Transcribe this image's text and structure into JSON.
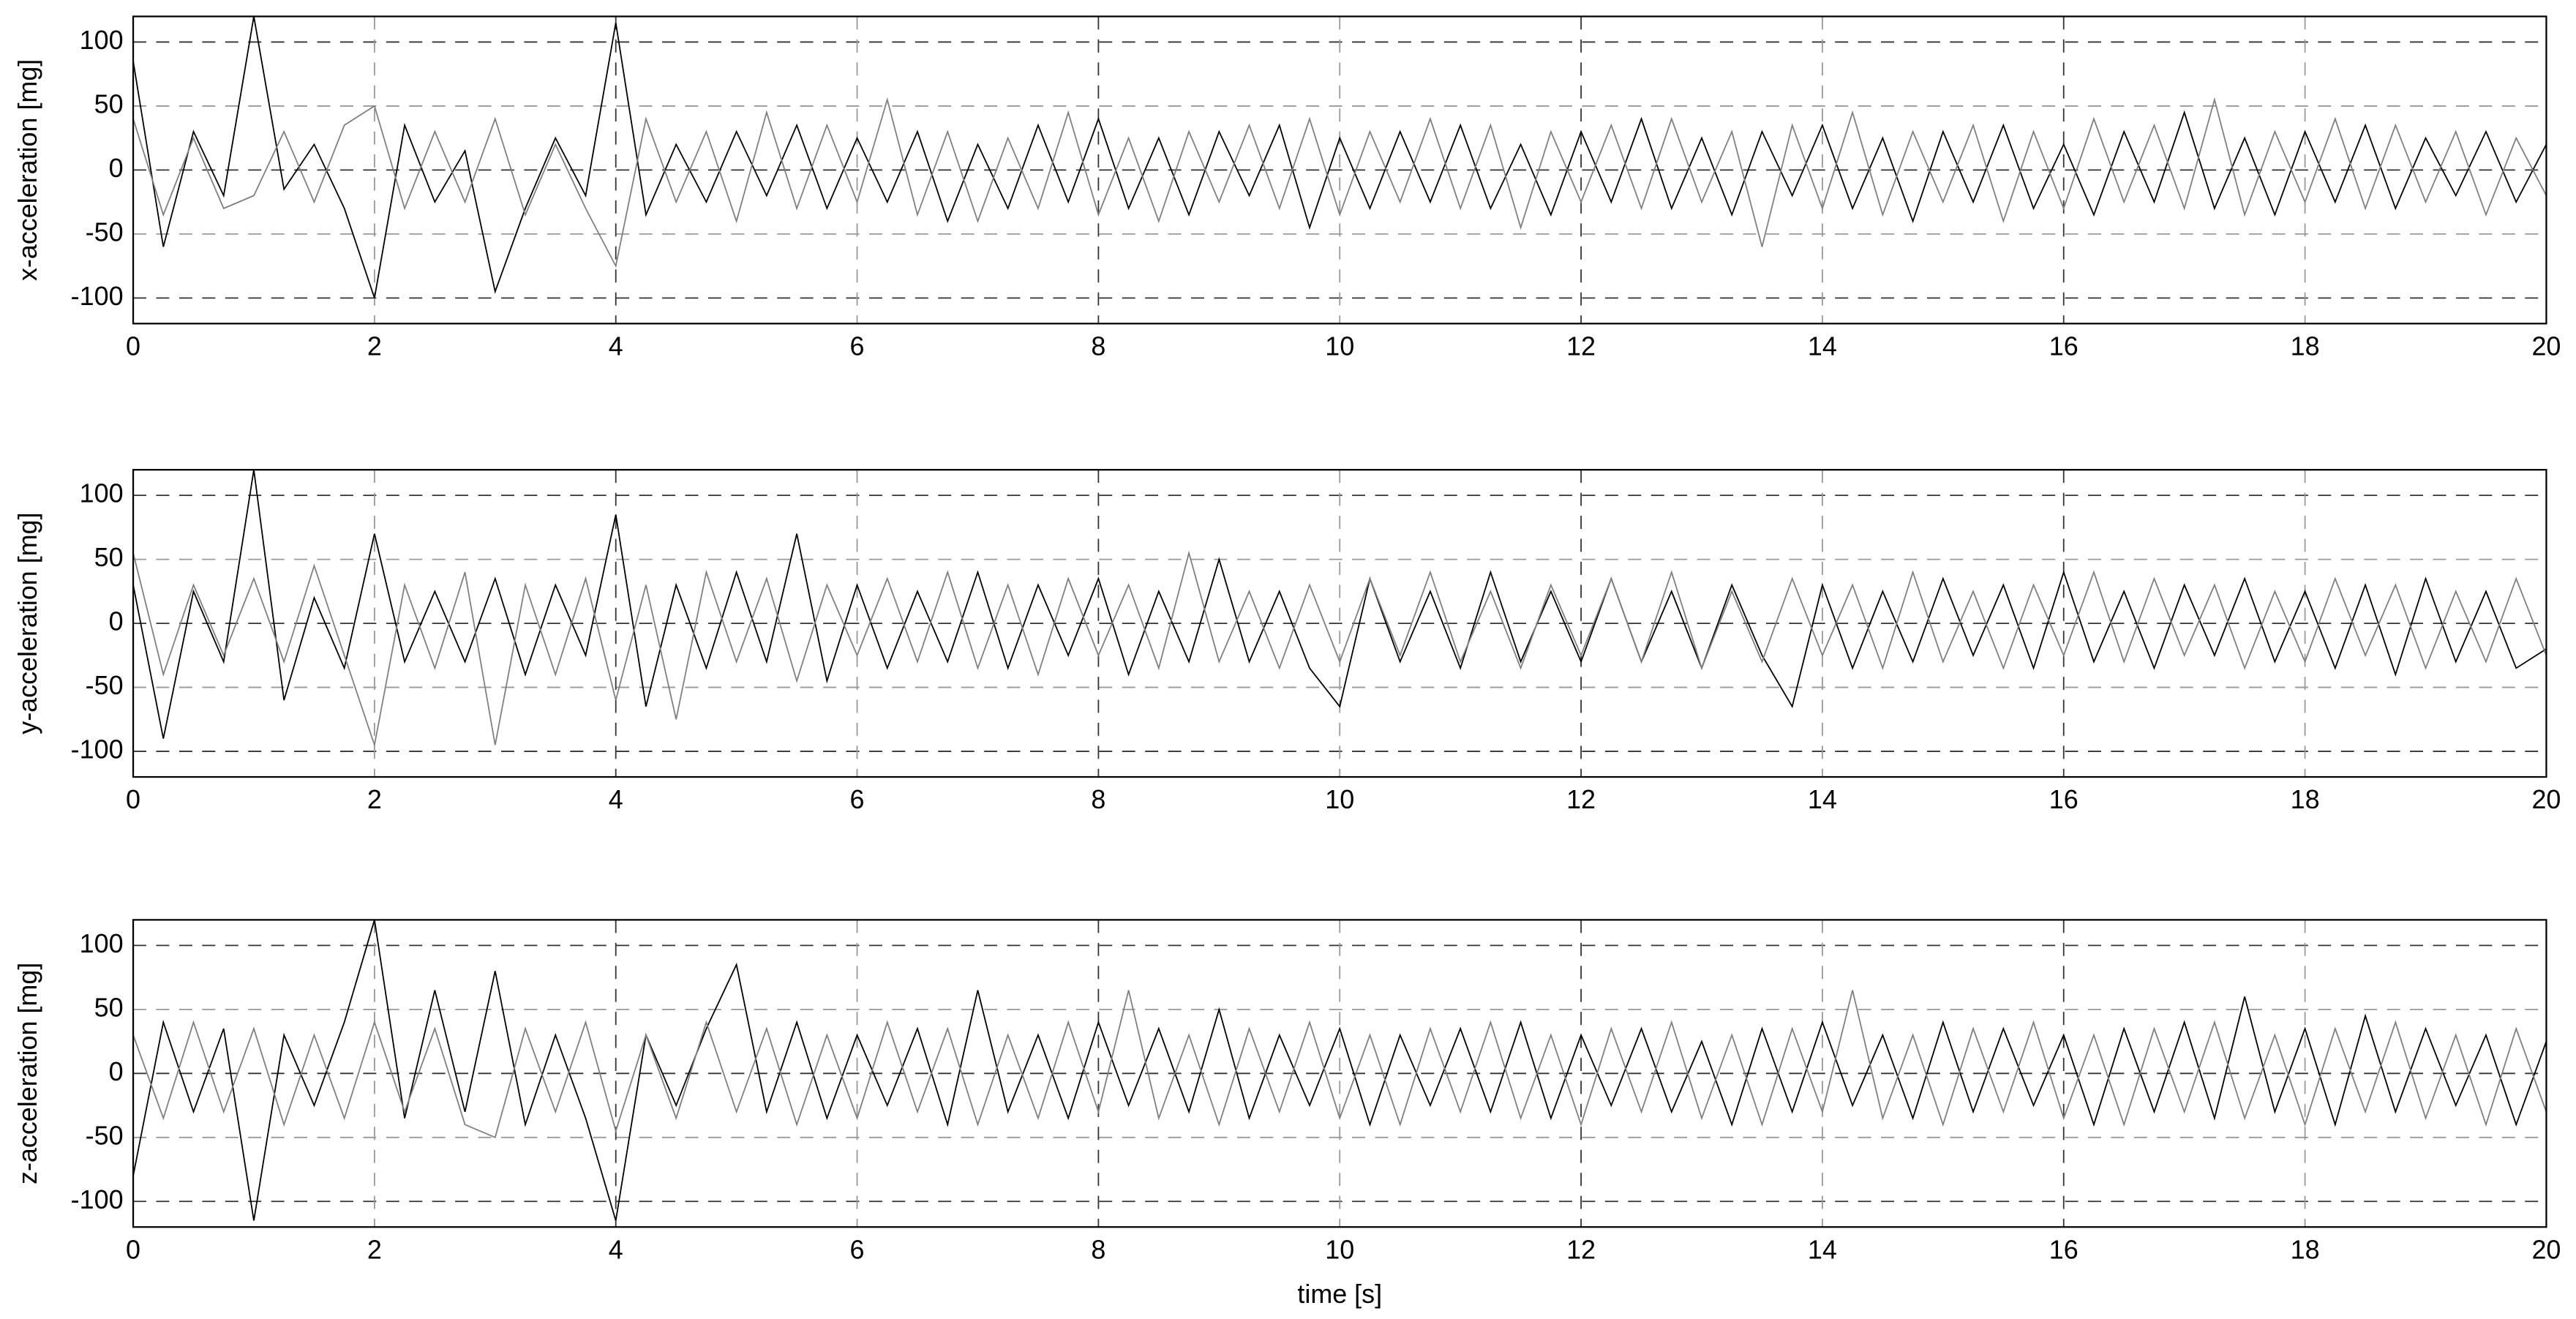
{
  "chart_data": [
    {
      "type": "line",
      "ylabel": "x-acceleration [mg]",
      "x": [
        0,
        0.25,
        0.5,
        0.75,
        1,
        1.25,
        1.5,
        1.75,
        2,
        2.25,
        2.5,
        2.75,
        3,
        3.25,
        3.5,
        3.75,
        4,
        4.25,
        4.5,
        4.75,
        5,
        5.25,
        5.5,
        5.75,
        6,
        6.25,
        6.5,
        6.75,
        7,
        7.25,
        7.5,
        7.75,
        8,
        8.25,
        8.5,
        8.75,
        9,
        9.25,
        9.5,
        9.75,
        10,
        10.25,
        10.5,
        10.75,
        11,
        11.25,
        11.5,
        11.75,
        12,
        12.25,
        12.5,
        12.75,
        13,
        13.25,
        13.5,
        13.75,
        14,
        14.25,
        14.5,
        14.75,
        15,
        15.25,
        15.5,
        15.75,
        16,
        16.25,
        16.5,
        16.75,
        17,
        17.25,
        17.5,
        17.75,
        18,
        18.25,
        18.5,
        18.75,
        19,
        19.25,
        19.5,
        19.75,
        20
      ],
      "series": [
        {
          "color": "#000000",
          "values": [
            85,
            -60,
            30,
            -20,
            120,
            -15,
            20,
            -30,
            -100,
            35,
            -25,
            15,
            -95,
            -30,
            25,
            -20,
            115,
            -35,
            20,
            -25,
            30,
            -20,
            35,
            -30,
            25,
            -25,
            30,
            -40,
            20,
            -30,
            35,
            -25,
            40,
            -30,
            25,
            -35,
            30,
            -20,
            35,
            -45,
            25,
            -30,
            30,
            -25,
            35,
            -30,
            20,
            -35,
            30,
            -25,
            40,
            -30,
            25,
            -35,
            30,
            -20,
            35,
            -30,
            25,
            -40,
            30,
            -25,
            35,
            -30,
            20,
            -35,
            30,
            -25,
            45,
            -30,
            25,
            -35,
            30,
            -25,
            35,
            -30,
            25,
            -20,
            30,
            -25,
            20
          ]
        },
        {
          "color": "#808080",
          "values": [
            40,
            -35,
            25,
            -30,
            -20,
            30,
            -25,
            35,
            50,
            -30,
            30,
            -25,
            40,
            -35,
            20,
            -30,
            -75,
            40,
            -25,
            30,
            -40,
            45,
            -30,
            35,
            -25,
            55,
            -35,
            30,
            -40,
            25,
            -30,
            45,
            -35,
            25,
            -40,
            30,
            -25,
            35,
            -30,
            40,
            -35,
            30,
            -25,
            40,
            -30,
            35,
            -45,
            30,
            -25,
            35,
            -30,
            40,
            -25,
            30,
            -60,
            35,
            -30,
            45,
            -35,
            30,
            -25,
            35,
            -40,
            30,
            -30,
            40,
            -25,
            35,
            -30,
            55,
            -35,
            30,
            -25,
            40,
            -30,
            35,
            -25,
            30,
            -35,
            25,
            -20
          ]
        }
      ],
      "xlim": [
        0,
        20
      ],
      "xticks": [
        0,
        2,
        4,
        6,
        8,
        10,
        12,
        14,
        16,
        18,
        20
      ],
      "ylim": [
        -120,
        120
      ],
      "yticks": [
        -100,
        -50,
        0,
        50,
        100
      ],
      "grid": true
    },
    {
      "type": "line",
      "ylabel": "y-acceleration [mg]",
      "x": [
        0,
        0.25,
        0.5,
        0.75,
        1,
        1.25,
        1.5,
        1.75,
        2,
        2.25,
        2.5,
        2.75,
        3,
        3.25,
        3.5,
        3.75,
        4,
        4.25,
        4.5,
        4.75,
        5,
        5.25,
        5.5,
        5.75,
        6,
        6.25,
        6.5,
        6.75,
        7,
        7.25,
        7.5,
        7.75,
        8,
        8.25,
        8.5,
        8.75,
        9,
        9.25,
        9.5,
        9.75,
        10,
        10.25,
        10.5,
        10.75,
        11,
        11.25,
        11.5,
        11.75,
        12,
        12.25,
        12.5,
        12.75,
        13,
        13.25,
        13.5,
        13.75,
        14,
        14.25,
        14.5,
        14.75,
        15,
        15.25,
        15.5,
        15.75,
        16,
        16.25,
        16.5,
        16.75,
        17,
        17.25,
        17.5,
        17.75,
        18,
        18.25,
        18.5,
        18.75,
        19,
        19.25,
        19.5,
        19.75,
        20
      ],
      "series": [
        {
          "color": "#000000",
          "values": [
            30,
            -90,
            25,
            -30,
            120,
            -60,
            20,
            -35,
            70,
            -30,
            25,
            -30,
            35,
            -40,
            30,
            -25,
            85,
            -65,
            30,
            -35,
            40,
            -30,
            70,
            -45,
            30,
            -35,
            25,
            -30,
            40,
            -35,
            30,
            -25,
            35,
            -40,
            25,
            -30,
            50,
            -30,
            25,
            -35,
            -65,
            35,
            -30,
            25,
            -35,
            40,
            -30,
            25,
            -30,
            35,
            -30,
            25,
            -35,
            30,
            -25,
            -65,
            30,
            -35,
            25,
            -30,
            35,
            -25,
            30,
            -35,
            40,
            -30,
            25,
            -35,
            30,
            -25,
            35,
            -30,
            25,
            -35,
            30,
            -40,
            35,
            -30,
            25,
            -35,
            -20
          ]
        },
        {
          "color": "#808080",
          "values": [
            55,
            -40,
            30,
            -25,
            35,
            -30,
            45,
            -25,
            -95,
            30,
            -35,
            40,
            -95,
            30,
            -40,
            35,
            -60,
            30,
            -75,
            40,
            -30,
            35,
            -45,
            30,
            -25,
            35,
            -30,
            40,
            -35,
            30,
            -40,
            35,
            -25,
            30,
            -35,
            55,
            -30,
            25,
            -35,
            30,
            -30,
            35,
            -25,
            40,
            -30,
            25,
            -35,
            30,
            -25,
            35,
            -30,
            40,
            -35,
            25,
            -30,
            35,
            -25,
            30,
            -35,
            40,
            -30,
            25,
            -35,
            30,
            -25,
            40,
            -30,
            35,
            -25,
            30,
            -35,
            25,
            -30,
            35,
            -25,
            30,
            -35,
            25,
            -30,
            35,
            -25
          ]
        }
      ],
      "xlim": [
        0,
        20
      ],
      "xticks": [
        0,
        2,
        4,
        6,
        8,
        10,
        12,
        14,
        16,
        18,
        20
      ],
      "ylim": [
        -120,
        120
      ],
      "yticks": [
        -100,
        -50,
        0,
        50,
        100
      ],
      "grid": true
    },
    {
      "type": "line",
      "ylabel": "z-acceleration [mg]",
      "xlabel": "time [s]",
      "x": [
        0,
        0.25,
        0.5,
        0.75,
        1,
        1.25,
        1.5,
        1.75,
        2,
        2.25,
        2.5,
        2.75,
        3,
        3.25,
        3.5,
        3.75,
        4,
        4.25,
        4.5,
        4.75,
        5,
        5.25,
        5.5,
        5.75,
        6,
        6.25,
        6.5,
        6.75,
        7,
        7.25,
        7.5,
        7.75,
        8,
        8.25,
        8.5,
        8.75,
        9,
        9.25,
        9.5,
        9.75,
        10,
        10.25,
        10.5,
        10.75,
        11,
        11.25,
        11.5,
        11.75,
        12,
        12.25,
        12.5,
        12.75,
        13,
        13.25,
        13.5,
        13.75,
        14,
        14.25,
        14.5,
        14.75,
        15,
        15.25,
        15.5,
        15.75,
        16,
        16.25,
        16.5,
        16.75,
        17,
        17.25,
        17.5,
        17.75,
        18,
        18.25,
        18.5,
        18.75,
        19,
        19.25,
        19.5,
        19.75,
        20
      ],
      "series": [
        {
          "color": "#000000",
          "values": [
            -80,
            40,
            -30,
            35,
            -115,
            30,
            -25,
            40,
            120,
            -35,
            65,
            -30,
            80,
            -40,
            30,
            -35,
            -115,
            30,
            -25,
            35,
            85,
            -30,
            40,
            -35,
            30,
            -25,
            35,
            -40,
            65,
            -30,
            30,
            -35,
            40,
            -25,
            35,
            -30,
            50,
            -35,
            30,
            -25,
            35,
            -40,
            30,
            -25,
            35,
            -30,
            40,
            -35,
            30,
            -25,
            35,
            -30,
            25,
            -40,
            35,
            -30,
            40,
            -25,
            30,
            -35,
            40,
            -30,
            35,
            -25,
            30,
            -40,
            35,
            -30,
            40,
            -35,
            60,
            -30,
            35,
            -40,
            45,
            -30,
            35,
            -25,
            30,
            -40,
            25
          ]
        },
        {
          "color": "#808080",
          "values": [
            30,
            -35,
            40,
            -30,
            35,
            -40,
            30,
            -35,
            40,
            -30,
            35,
            -40,
            -50,
            35,
            -30,
            40,
            -45,
            30,
            -35,
            40,
            -30,
            35,
            -40,
            30,
            -35,
            40,
            -30,
            35,
            -40,
            30,
            -35,
            40,
            -30,
            65,
            -35,
            30,
            -40,
            35,
            -30,
            40,
            -35,
            30,
            -40,
            35,
            -30,
            40,
            -35,
            30,
            -40,
            35,
            -30,
            40,
            -35,
            30,
            -40,
            35,
            -30,
            65,
            -35,
            30,
            -40,
            35,
            -30,
            40,
            -35,
            30,
            -40,
            35,
            -30,
            40,
            -35,
            30,
            -40,
            35,
            -30,
            40,
            -35,
            30,
            -40,
            35,
            -30
          ]
        }
      ],
      "xlim": [
        0,
        20
      ],
      "xticks": [
        0,
        2,
        4,
        6,
        8,
        10,
        12,
        14,
        16,
        18,
        20
      ],
      "ylim": [
        -120,
        120
      ],
      "yticks": [
        -100,
        -50,
        0,
        50,
        100
      ],
      "grid": true
    }
  ]
}
